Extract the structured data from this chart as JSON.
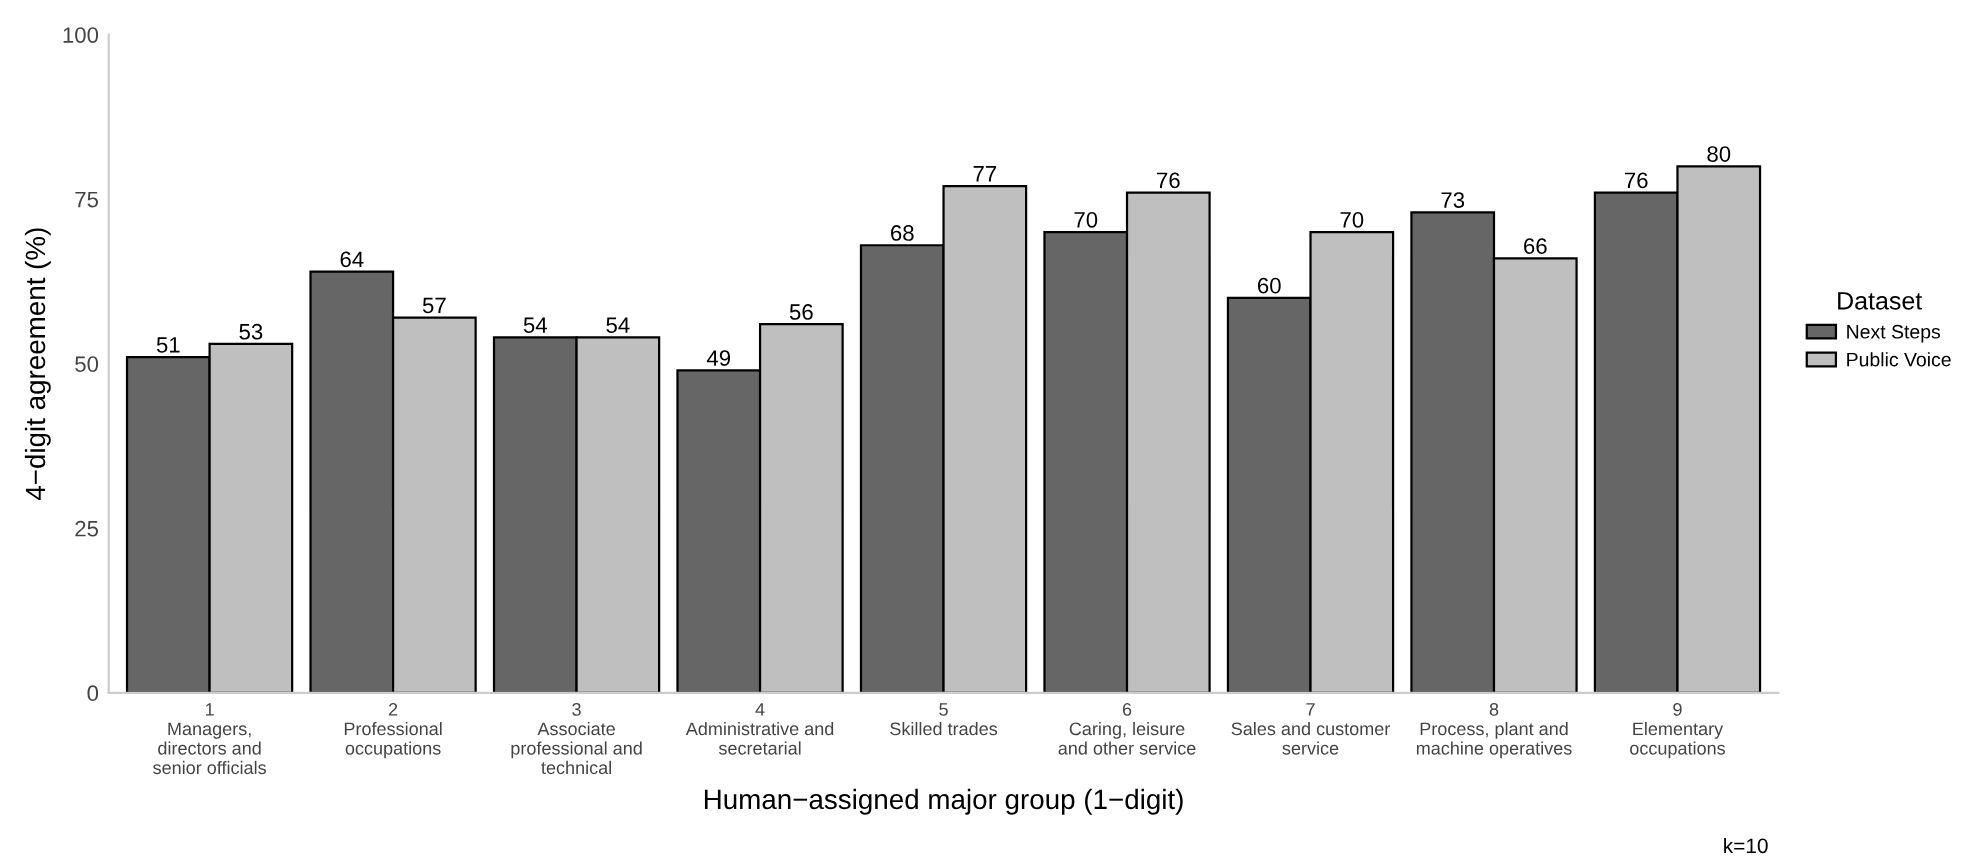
{
  "chart_data": {
    "type": "bar",
    "categories": [
      "1\nManagers,\ndirectors and\nsenior officials",
      "2\nProfessional\noccupations",
      "3\nAssociate\nprofessional and\ntechnical",
      "4\nAdministrative and\nsecretarial",
      "5\nSkilled trades",
      "6\nCaring, leisure\nand other service",
      "7\nSales and customer\nservice",
      "8\nProcess, plant and\nmachine operatives",
      "9\nElementary\noccupations"
    ],
    "series": [
      {
        "name": "Next Steps",
        "color": "#666666",
        "values": [
          51,
          64,
          54,
          49,
          68,
          70,
          60,
          73,
          76
        ]
      },
      {
        "name": "Public Voice",
        "color": "#bfbfbf",
        "values": [
          53,
          57,
          54,
          56,
          77,
          76,
          70,
          66,
          80
        ]
      }
    ],
    "xlabel": "Human−assigned major group (1−digit)",
    "ylabel": "4−digit agreement (%)",
    "legend_title": "Dataset",
    "legend": "right",
    "ylim": [
      0,
      100
    ],
    "yticks": [
      0,
      25,
      50,
      75,
      100
    ],
    "data_labels": true,
    "grid": false,
    "annotations": [
      "k=10"
    ]
  }
}
